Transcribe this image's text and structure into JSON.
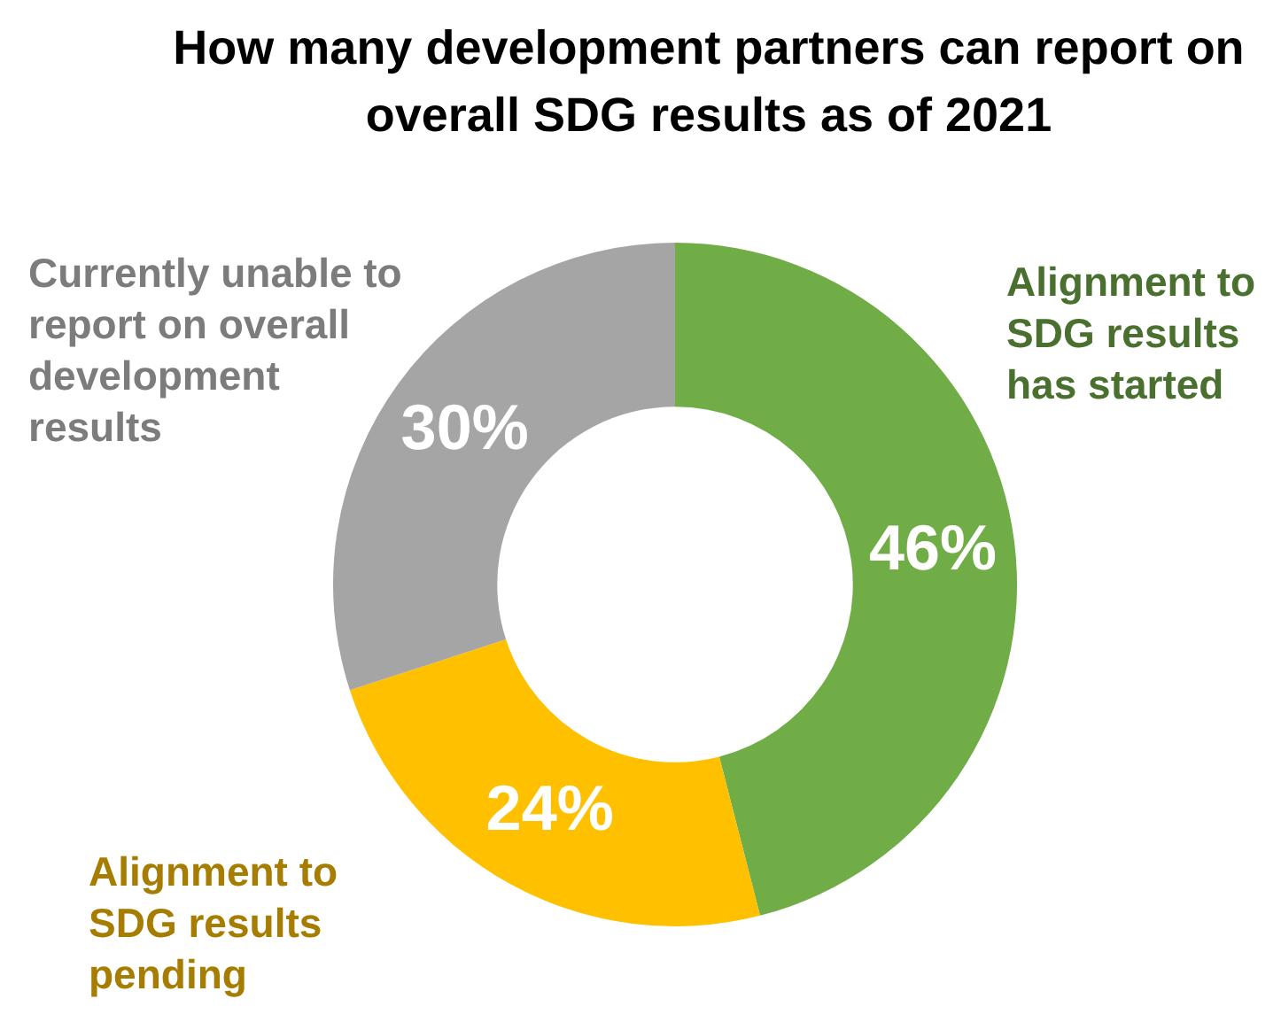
{
  "chart_data": {
    "type": "donut",
    "title": "How many development partners can report on overall SDG results as of 2021",
    "categories": [
      "Alignment to SDG results has started",
      "Alignment to SDG results pending",
      "Currently unable to report on overall development results"
    ],
    "values": [
      46,
      24,
      30
    ],
    "colors": [
      "#70ad47",
      "#ffc000",
      "#a5a5a5"
    ],
    "value_labels": [
      "46%",
      "24%",
      "30%"
    ],
    "legend": false
  }
}
